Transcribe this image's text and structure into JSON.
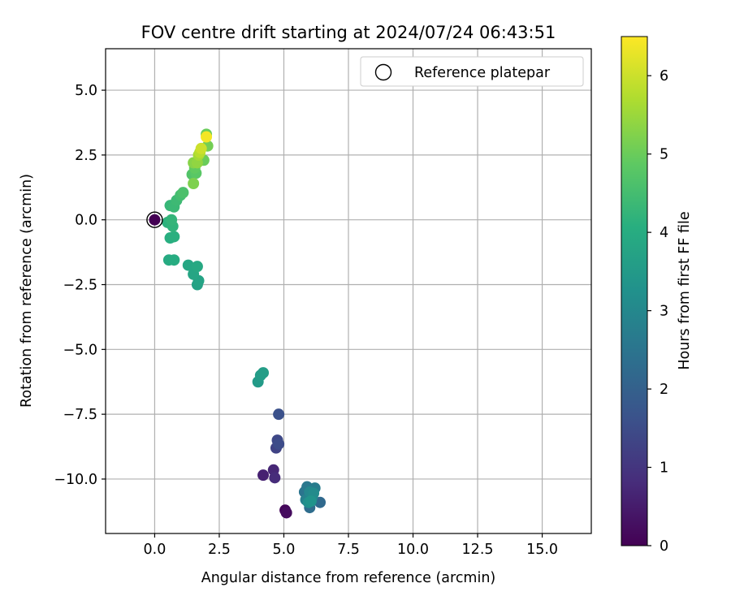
{
  "chart_data": {
    "type": "scatter",
    "title": "FOV centre drift starting at 2024/07/24 06:43:51",
    "xlabel": "Angular distance from reference (arcmin)",
    "ylabel": "Rotation from reference (arcmin)",
    "xlim": [
      -1.9,
      16.9
    ],
    "ylim": [
      -12.1,
      6.6
    ],
    "xticks": [
      0.0,
      2.5,
      5.0,
      7.5,
      10.0,
      12.5,
      15.0
    ],
    "xtick_labels": [
      "0.0",
      "2.5",
      "5.0",
      "7.5",
      "10.0",
      "12.5",
      "15.0"
    ],
    "yticks": [
      5.0,
      2.5,
      0.0,
      -2.5,
      -5.0,
      -7.5,
      -10.0
    ],
    "ytick_labels": [
      "5.0",
      "2.5",
      "0.0",
      "−2.5",
      "−5.0",
      "−7.5",
      "−10.0"
    ],
    "grid": true,
    "legend": {
      "position": "top-right",
      "entries": [
        "Reference platepar"
      ]
    },
    "reference_point": {
      "x": 0.0,
      "y": 0.0
    },
    "colorbar": {
      "label": "Hours from first FF file",
      "range": [
        0,
        6.5
      ],
      "ticks": [
        0,
        1,
        2,
        3,
        4,
        5,
        6
      ],
      "tick_labels": [
        "0",
        "1",
        "2",
        "3",
        "4",
        "5",
        "6"
      ],
      "colormap": "viridis"
    },
    "points": [
      {
        "x": 0.0,
        "y": 0.0,
        "t": 0.0
      },
      {
        "x": 5.05,
        "y": -11.2,
        "t": 0.1
      },
      {
        "x": 5.1,
        "y": -11.3,
        "t": 0.2
      },
      {
        "x": 4.2,
        "y": -9.85,
        "t": 0.6
      },
      {
        "x": 4.6,
        "y": -9.65,
        "t": 0.7
      },
      {
        "x": 4.65,
        "y": -9.95,
        "t": 0.8
      },
      {
        "x": 4.7,
        "y": -8.8,
        "t": 1.3
      },
      {
        "x": 4.75,
        "y": -8.5,
        "t": 1.4
      },
      {
        "x": 4.8,
        "y": -8.65,
        "t": 1.5
      },
      {
        "x": 4.8,
        "y": -7.5,
        "t": 1.6
      },
      {
        "x": 6.4,
        "y": -10.9,
        "t": 2.2
      },
      {
        "x": 6.0,
        "y": -11.1,
        "t": 2.3
      },
      {
        "x": 5.8,
        "y": -10.5,
        "t": 2.5
      },
      {
        "x": 5.9,
        "y": -10.3,
        "t": 2.6
      },
      {
        "x": 6.2,
        "y": -10.35,
        "t": 2.7
      },
      {
        "x": 5.85,
        "y": -10.8,
        "t": 2.8
      },
      {
        "x": 6.1,
        "y": -10.7,
        "t": 2.9
      },
      {
        "x": 6.0,
        "y": -10.5,
        "t": 3.0
      },
      {
        "x": 6.15,
        "y": -10.55,
        "t": 3.1
      },
      {
        "x": 5.95,
        "y": -10.9,
        "t": 3.2
      },
      {
        "x": 6.05,
        "y": -10.85,
        "t": 3.3
      },
      {
        "x": 4.0,
        "y": -6.25,
        "t": 3.5
      },
      {
        "x": 4.1,
        "y": -6.0,
        "t": 3.55
      },
      {
        "x": 4.2,
        "y": -5.9,
        "t": 3.6
      },
      {
        "x": 1.65,
        "y": -2.5,
        "t": 3.7
      },
      {
        "x": 1.7,
        "y": -2.35,
        "t": 3.75
      },
      {
        "x": 1.5,
        "y": -2.1,
        "t": 3.8
      },
      {
        "x": 1.3,
        "y": -1.75,
        "t": 3.85
      },
      {
        "x": 1.65,
        "y": -1.8,
        "t": 3.9
      },
      {
        "x": 0.55,
        "y": -1.55,
        "t": 3.95
      },
      {
        "x": 0.75,
        "y": -1.55,
        "t": 4.0
      },
      {
        "x": 0.6,
        "y": -0.7,
        "t": 4.05
      },
      {
        "x": 0.75,
        "y": -0.65,
        "t": 4.1
      },
      {
        "x": 0.5,
        "y": -0.1,
        "t": 4.15
      },
      {
        "x": 0.7,
        "y": -0.25,
        "t": 4.2
      },
      {
        "x": 0.65,
        "y": 0.0,
        "t": 4.25
      },
      {
        "x": 0.6,
        "y": 0.55,
        "t": 4.3
      },
      {
        "x": 0.75,
        "y": 0.5,
        "t": 4.35
      },
      {
        "x": 0.85,
        "y": 0.75,
        "t": 4.4
      },
      {
        "x": 1.0,
        "y": 0.95,
        "t": 4.5
      },
      {
        "x": 1.1,
        "y": 1.05,
        "t": 4.6
      },
      {
        "x": 1.45,
        "y": 1.75,
        "t": 4.7
      },
      {
        "x": 1.6,
        "y": 1.8,
        "t": 4.8
      },
      {
        "x": 1.55,
        "y": 2.0,
        "t": 4.9
      },
      {
        "x": 1.9,
        "y": 2.3,
        "t": 5.0
      },
      {
        "x": 2.0,
        "y": 3.3,
        "t": 5.0
      },
      {
        "x": 2.05,
        "y": 2.85,
        "t": 5.1
      },
      {
        "x": 1.5,
        "y": 1.4,
        "t": 5.2
      },
      {
        "x": 1.5,
        "y": 2.2,
        "t": 5.3
      },
      {
        "x": 1.65,
        "y": 2.2,
        "t": 5.4
      },
      {
        "x": 1.7,
        "y": 2.5,
        "t": 5.6
      },
      {
        "x": 1.75,
        "y": 2.6,
        "t": 5.8
      },
      {
        "x": 1.8,
        "y": 2.75,
        "t": 6.0
      },
      {
        "x": 2.0,
        "y": 3.2,
        "t": 6.4
      }
    ]
  }
}
